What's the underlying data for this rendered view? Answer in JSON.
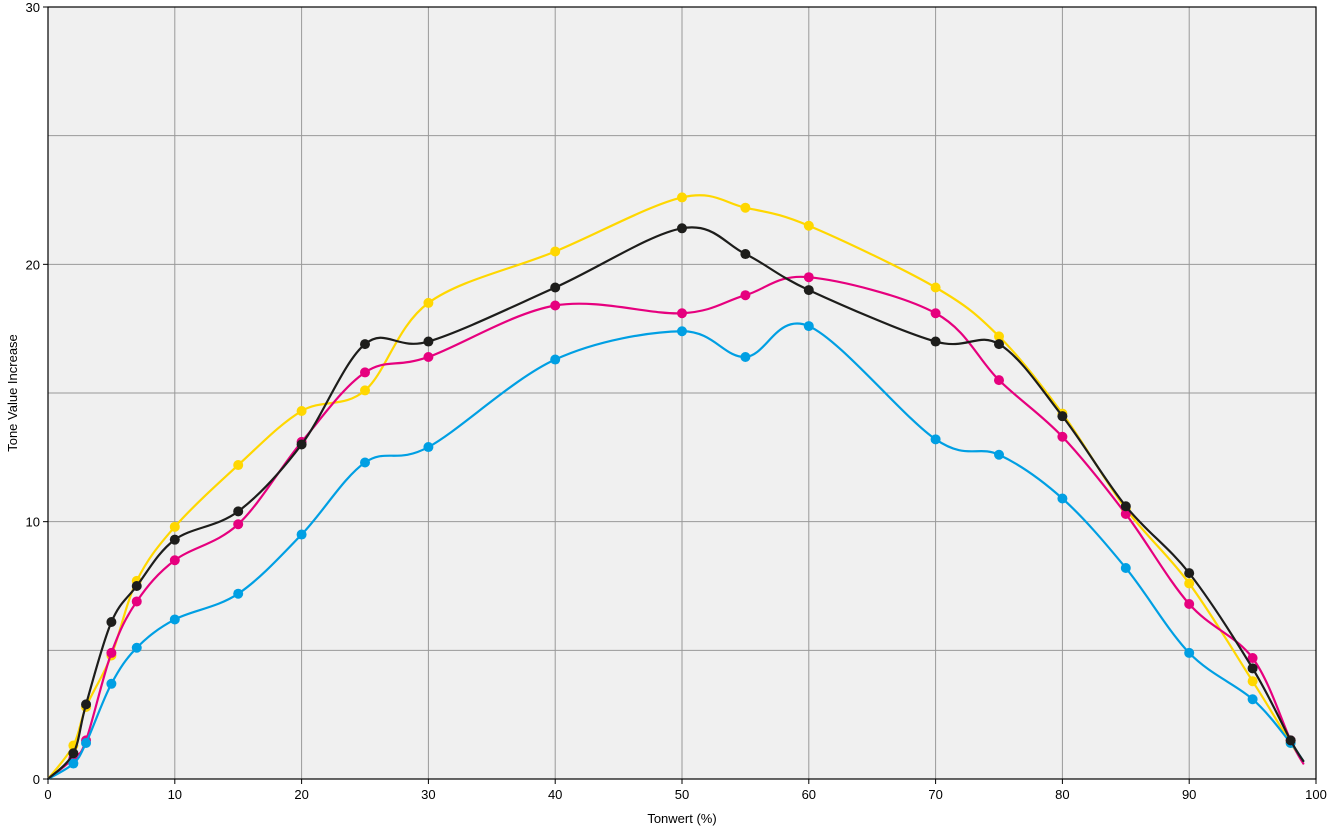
{
  "chart_data": {
    "type": "line",
    "title": "",
    "xlabel": "Tonwert (%)",
    "ylabel": "Tone Value Increase",
    "xlim": [
      0,
      100
    ],
    "ylim": [
      0,
      30
    ],
    "x_ticks": [
      0,
      10,
      20,
      30,
      40,
      50,
      60,
      70,
      80,
      90,
      100
    ],
    "y_ticks": [
      0,
      10,
      20,
      30
    ],
    "x_tick_labels": [
      "0",
      "10",
      "20",
      "30",
      "40",
      "50",
      "60",
      "70",
      "80",
      "90",
      "100"
    ],
    "y_tick_labels": [
      "0",
      "10",
      "20",
      "30"
    ],
    "grid": true,
    "grid_x_step": 10,
    "grid_y_step": 5,
    "background_color": "#f0f0f0",
    "grid_color": "#999999",
    "series": [
      {
        "color": "#ffd700",
        "x": [
          0,
          2,
          3,
          5,
          7,
          10,
          15,
          20,
          25,
          30,
          40,
          50,
          55,
          60,
          70,
          75,
          80,
          85,
          90,
          95,
          98,
          99
        ],
        "y": [
          0,
          1.3,
          2.8,
          4.8,
          7.7,
          9.8,
          12.2,
          14.3,
          15.1,
          18.5,
          20.5,
          22.6,
          22.2,
          21.5,
          19.1,
          17.2,
          14.2,
          10.5,
          7.6,
          3.8,
          1.4,
          0.7
        ]
      },
      {
        "color": "#e6007e",
        "x": [
          0,
          2,
          3,
          5,
          7,
          10,
          15,
          20,
          25,
          30,
          40,
          50,
          55,
          60,
          70,
          75,
          80,
          85,
          90,
          95,
          98,
          99
        ],
        "y": [
          0,
          0.8,
          1.5,
          4.9,
          6.9,
          8.5,
          9.9,
          13.1,
          15.8,
          16.4,
          18.4,
          18.1,
          18.8,
          19.5,
          18.1,
          15.5,
          13.3,
          10.3,
          6.8,
          4.7,
          1.5,
          0.6
        ]
      },
      {
        "color": "#009fe3",
        "x": [
          0,
          2,
          3,
          5,
          7,
          10,
          15,
          20,
          25,
          30,
          40,
          50,
          55,
          60,
          70,
          75,
          80,
          85,
          90,
          95,
          98,
          99
        ],
        "y": [
          0,
          0.6,
          1.4,
          3.7,
          5.1,
          6.2,
          7.2,
          9.5,
          12.3,
          12.9,
          16.3,
          17.4,
          16.4,
          17.6,
          13.2,
          12.6,
          10.9,
          8.2,
          4.9,
          3.1,
          1.4,
          0.7
        ]
      },
      {
        "color": "#1d1d1b",
        "x": [
          0,
          2,
          3,
          5,
          7,
          10,
          15,
          20,
          25,
          30,
          40,
          50,
          55,
          60,
          70,
          75,
          80,
          85,
          90,
          95,
          98,
          99
        ],
        "y": [
          0,
          1.0,
          2.9,
          6.1,
          7.5,
          9.3,
          10.4,
          13.0,
          16.9,
          17.0,
          19.1,
          21.4,
          20.4,
          19.0,
          17.0,
          16.9,
          14.1,
          10.6,
          8.0,
          4.3,
          1.5,
          0.7
        ]
      }
    ]
  }
}
